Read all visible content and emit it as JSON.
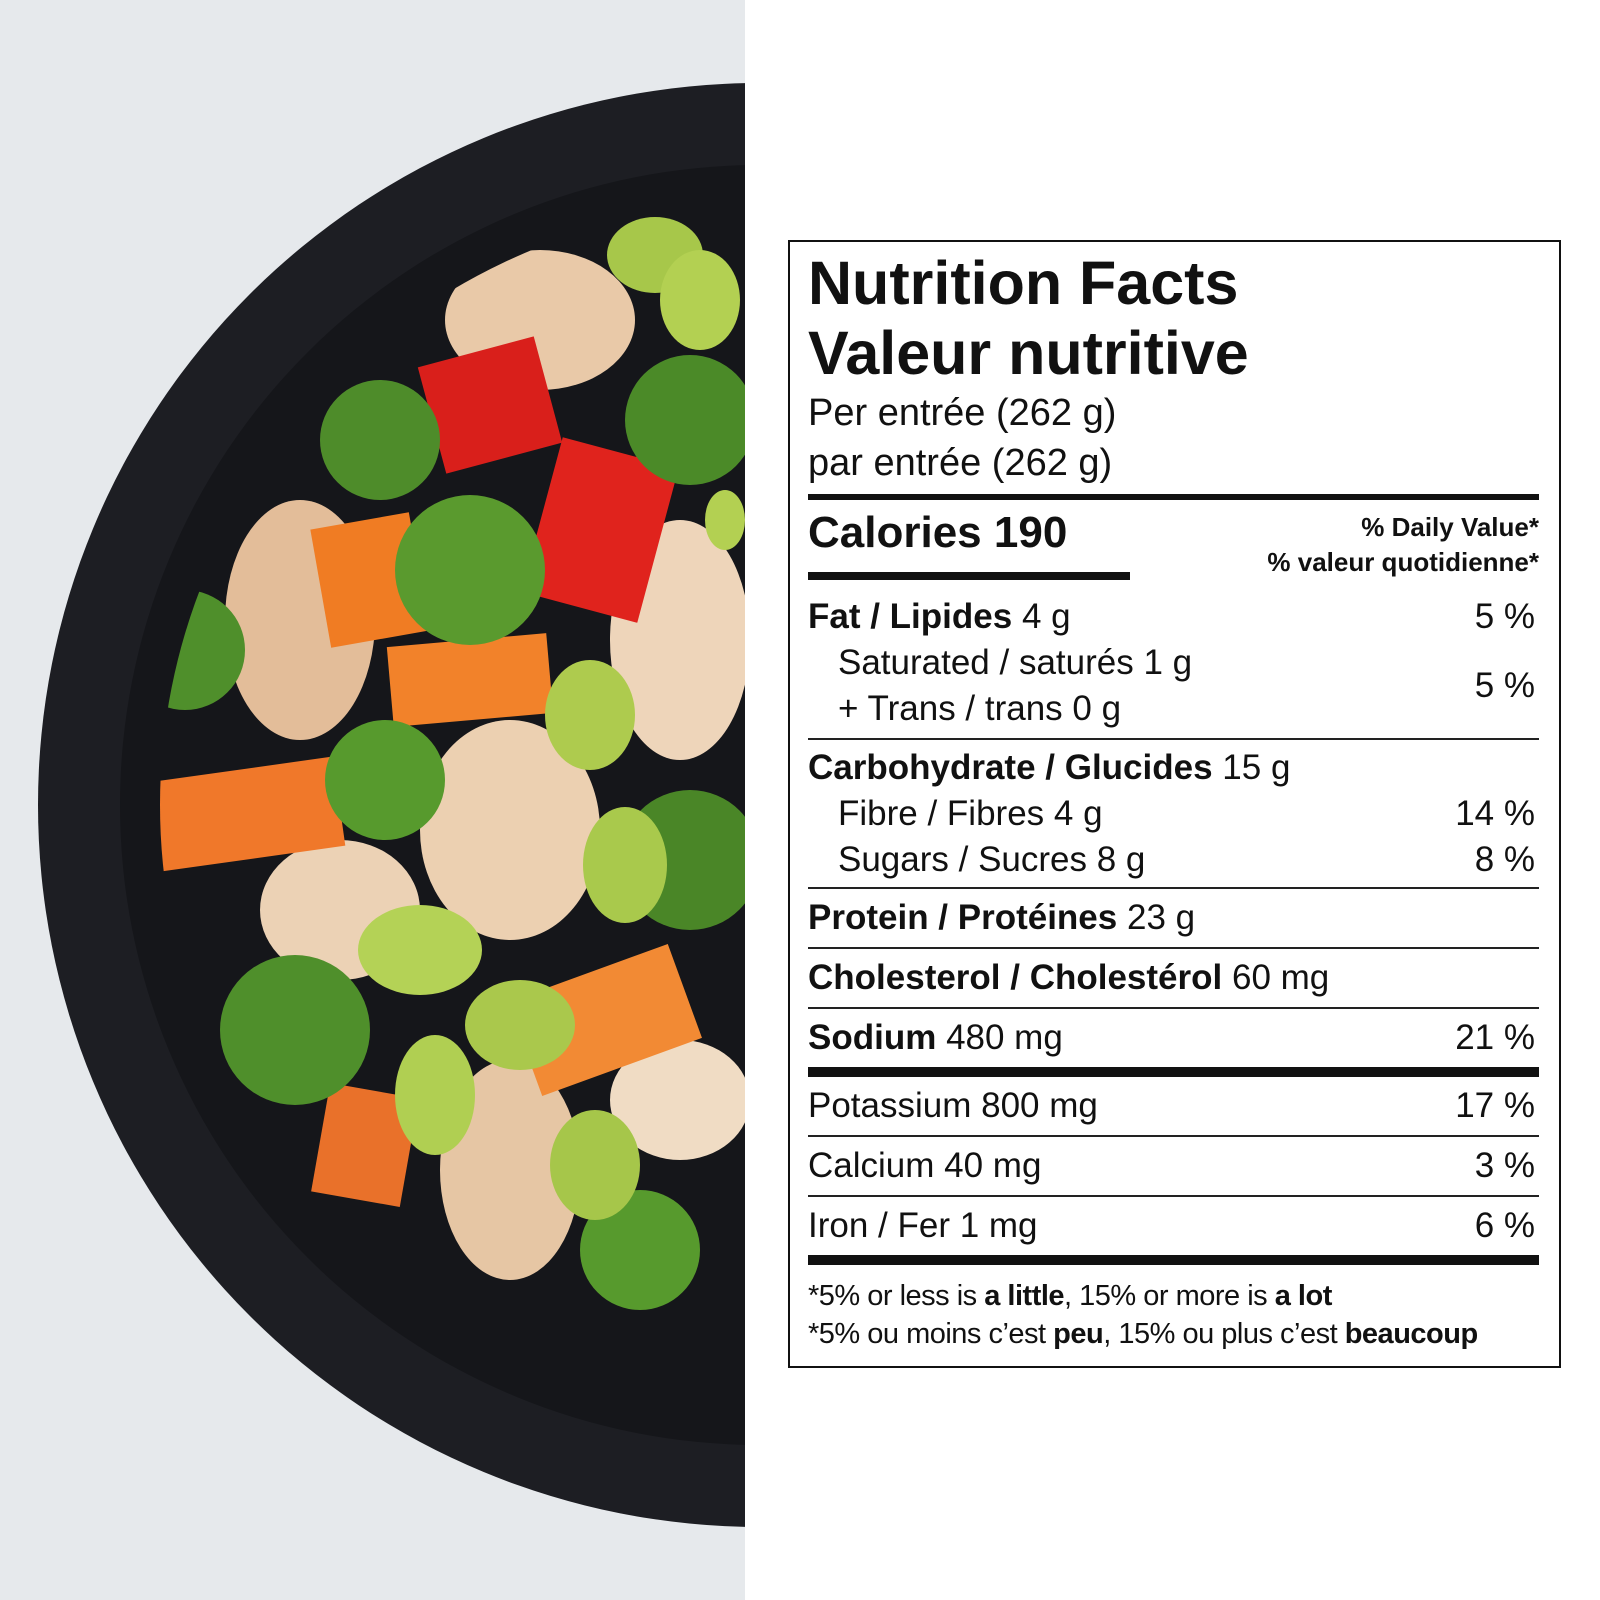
{
  "label": {
    "title": [
      "Nutrition Facts",
      "Valeur nutritive"
    ],
    "serving": [
      "Per entrée (262 g)",
      "par entrée (262 g)"
    ],
    "calories": {
      "name": "Calories",
      "amount": "190"
    },
    "daily_value_header": [
      "% Daily Value*",
      "% valeur quotidienne*"
    ],
    "fat": {
      "name": "Fat / Lipides",
      "amount": "4 g",
      "dv": "5 %"
    },
    "saturated_trans": {
      "saturated": "Saturated / saturés 1 g",
      "trans": "+ Trans / trans 0 g",
      "dv": "5 %"
    },
    "carbohydrate": {
      "name": "Carbohydrate / Glucides",
      "amount": "15 g"
    },
    "fibre": {
      "name": "Fibre / Fibres 4 g",
      "dv": "14 %"
    },
    "sugars": {
      "name": "Sugars / Sucres 8 g",
      "dv": "8 %"
    },
    "protein": {
      "name": "Protein / Protéines",
      "amount": "23 g"
    },
    "cholesterol": {
      "name": "Cholesterol / Cholestérol",
      "amount": "60 mg"
    },
    "sodium": {
      "name": "Sodium",
      "amount": "480 mg",
      "dv": "21 %"
    },
    "potassium": {
      "name": "Potassium 800 mg",
      "dv": "17 %"
    },
    "calcium": {
      "name": "Calcium 40 mg",
      "dv": "3 %"
    },
    "iron": {
      "name": "Iron / Fer 1 mg",
      "dv": "6 %"
    },
    "footnotes": [
      [
        "*5% or less is ",
        "a little",
        ", 15% or more is ",
        "a lot"
      ],
      [
        "*5% ou moins c’est ",
        "peu",
        ", 15% ou plus c’est ",
        "beaucoup"
      ]
    ]
  }
}
